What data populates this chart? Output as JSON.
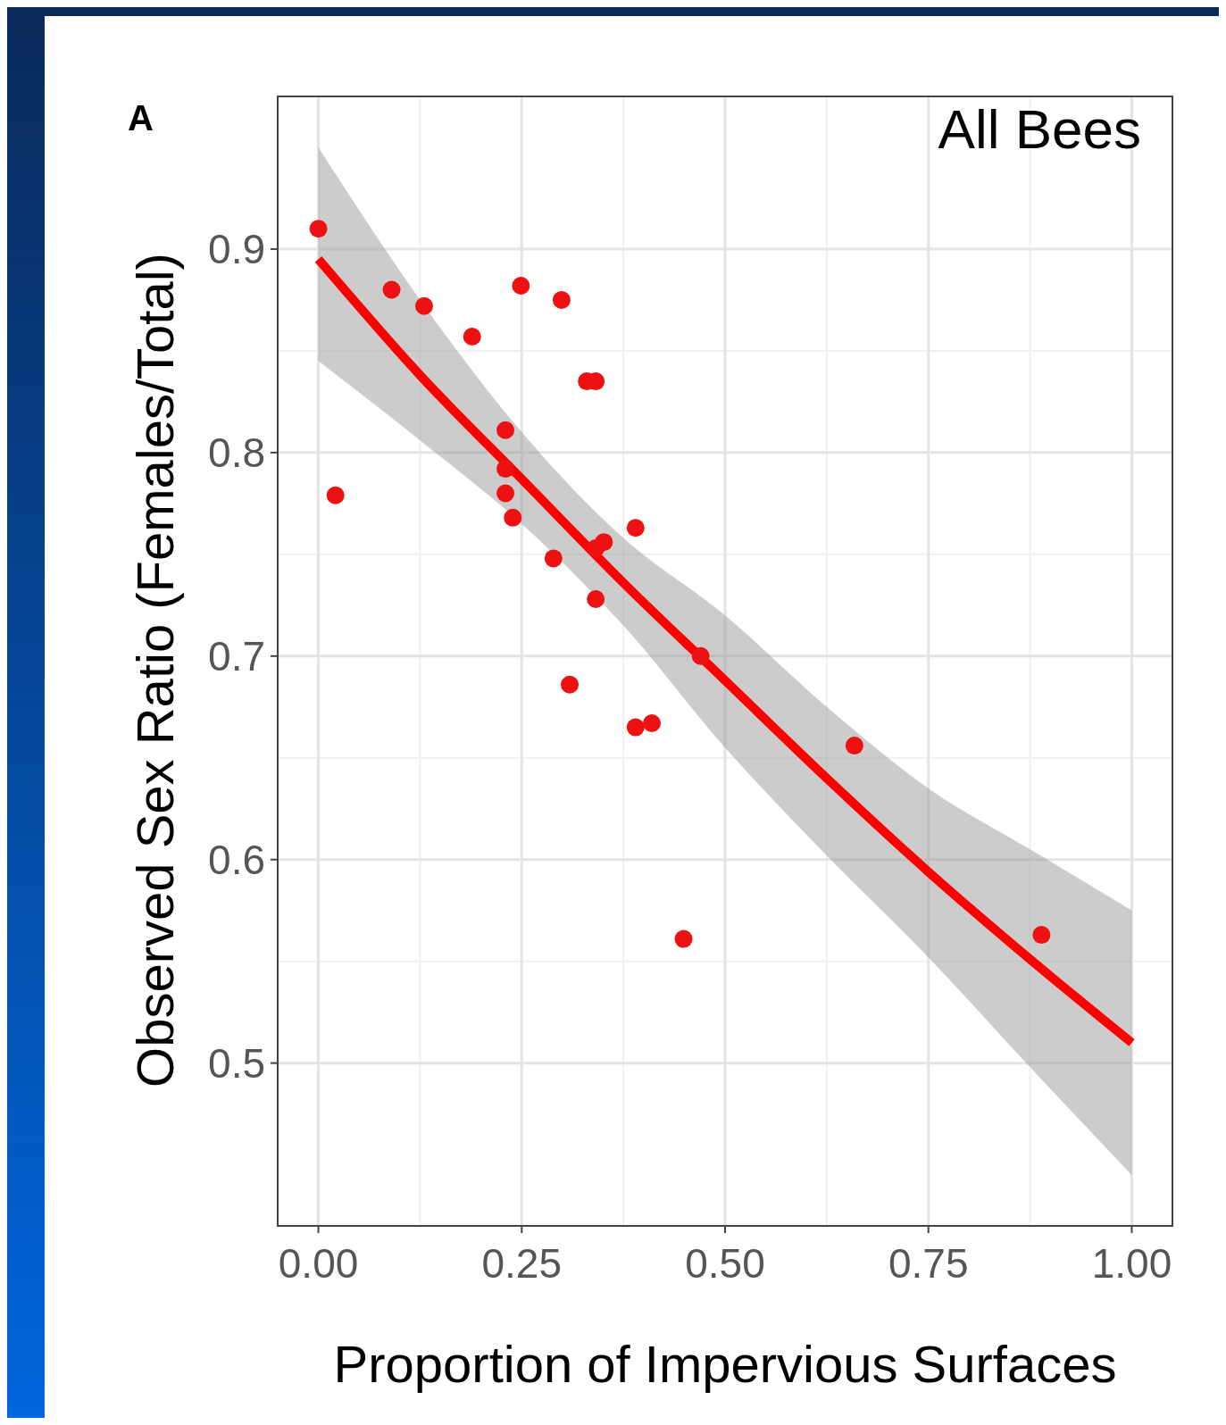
{
  "chart_data": {
    "type": "scatter",
    "xlabel": "Proportion of Impervious Surfaces",
    "ylabel": "Observed Sex Ratio (Females/Total)",
    "annotations": [
      "A",
      "All Bees"
    ],
    "xlim": [
      -0.05,
      1.05
    ],
    "ylim": [
      0.42,
      0.975
    ],
    "xticks": [
      {
        "value": 0,
        "label": "0.00"
      },
      {
        "value": 0.25,
        "label": "0.25"
      },
      {
        "value": 0.5,
        "label": "0.50"
      },
      {
        "value": 0.75,
        "label": "0.75"
      },
      {
        "value": 1,
        "label": "1.00"
      }
    ],
    "yticks": [
      0.5,
      0.6,
      0.7,
      0.8,
      0.9
    ],
    "grid": true,
    "series": [
      {
        "marker": "circle",
        "color": "#ee1111",
        "x": [
          0,
          0.021,
          0.09,
          0.13,
          0.189,
          0.23,
          0.23,
          0.23,
          0.239,
          0.249,
          0.289,
          0.299,
          0.309,
          0.33,
          0.341,
          0.341,
          0.351,
          0.341,
          0.39,
          0.39,
          0.41,
          0.449,
          0.47,
          0.659,
          0.889
        ],
        "values": [
          0.91,
          0.779,
          0.88,
          0.872,
          0.857,
          0.811,
          0.792,
          0.78,
          0.768,
          0.882,
          0.748,
          0.875,
          0.686,
          0.835,
          0.835,
          0.753,
          0.756,
          0.728,
          0.763,
          0.665,
          0.667,
          0.561,
          0.7,
          0.656,
          0.563
        ]
      },
      {
        "type": "line",
        "color": "#ff0000",
        "x": [
          0,
          0.125,
          0.25,
          0.375,
          0.5,
          0.625,
          0.75,
          0.875,
          1
        ],
        "values": [
          0.895,
          0.838,
          0.787,
          0.736,
          0.688,
          0.64,
          0.594,
          0.551,
          0.51
        ],
        "lower": [
          0.845,
          0.806,
          0.765,
          0.715,
          0.655,
          0.602,
          0.552,
          0.498,
          0.445
        ],
        "upper": [
          0.95,
          0.875,
          0.81,
          0.758,
          0.72,
          0.675,
          0.635,
          0.605,
          0.575
        ]
      }
    ]
  }
}
